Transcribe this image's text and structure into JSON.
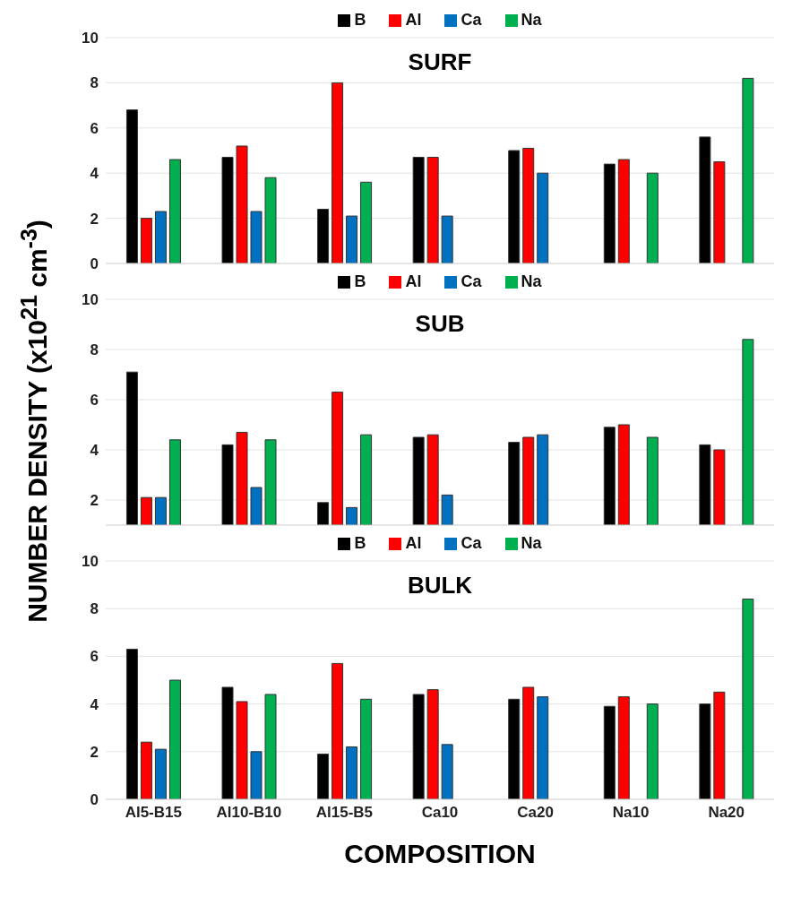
{
  "chart_data": [
    {
      "type": "bar",
      "title": "SURF",
      "categories": [
        null,
        null,
        null,
        null,
        null,
        null,
        null
      ],
      "series": [
        {
          "name": "B",
          "color": "#000000",
          "values": [
            6.8,
            4.7,
            2.4,
            4.7,
            5.0,
            4.4,
            5.6
          ]
        },
        {
          "name": "Al",
          "color": "#ff0000",
          "values": [
            2.0,
            5.2,
            8.0,
            4.7,
            5.1,
            4.6,
            4.5
          ]
        },
        {
          "name": "Ca",
          "color": "#0070c0",
          "values": [
            2.3,
            2.3,
            2.1,
            2.1,
            4.0,
            null,
            null
          ]
        },
        {
          "name": "Na",
          "color": "#00b050",
          "values": [
            4.6,
            3.8,
            3.6,
            null,
            null,
            4.0,
            8.2
          ]
        }
      ],
      "ylim": [
        0,
        10
      ],
      "yticks": [
        0,
        2,
        4,
        6,
        8,
        10
      ],
      "grid": "y",
      "legend": "top",
      "tick_labels": "y"
    },
    {
      "type": "bar",
      "title": "SUB",
      "ylabel": "NUMBER DENSITY (x10$^{21}$ cm$^{-3}$)",
      "categories": [
        null,
        null,
        null,
        null,
        null,
        null,
        null
      ],
      "series": [
        {
          "name": "B",
          "color": "#000000",
          "values": [
            7.1,
            4.2,
            1.9,
            4.5,
            4.3,
            4.9,
            4.2
          ]
        },
        {
          "name": "Al",
          "color": "#ff0000",
          "values": [
            2.1,
            4.7,
            6.3,
            4.6,
            4.5,
            5.0,
            4.0
          ]
        },
        {
          "name": "Ca",
          "color": "#0070c0",
          "values": [
            2.1,
            2.5,
            1.7,
            2.2,
            4.6,
            null,
            null
          ]
        },
        {
          "name": "Na",
          "color": "#00b050",
          "values": [
            4.4,
            4.4,
            4.6,
            null,
            null,
            4.5,
            8.4
          ]
        }
      ],
      "ylim": [
        1,
        10
      ],
      "yticks": [
        2,
        4,
        6,
        8,
        10
      ],
      "grid": "y",
      "legend": "top",
      "tick_labels": "y"
    },
    {
      "type": "bar",
      "title": "BULK",
      "xlabel": "COMPOSITION",
      "categories": [
        "Al5-B15",
        "Al10-B10",
        "Al15-B5",
        "Ca10",
        "Ca20",
        "Na10",
        "Na20"
      ],
      "series": [
        {
          "name": "B",
          "color": "#000000",
          "values": [
            6.3,
            4.7,
            1.9,
            4.4,
            4.2,
            3.9,
            4.0
          ]
        },
        {
          "name": "Al",
          "color": "#ff0000",
          "values": [
            2.4,
            4.1,
            5.7,
            4.6,
            4.7,
            4.3,
            4.5
          ]
        },
        {
          "name": "Ca",
          "color": "#0070c0",
          "values": [
            2.1,
            2.0,
            2.2,
            2.3,
            4.3,
            null,
            null
          ]
        },
        {
          "name": "Na",
          "color": "#00b050",
          "values": [
            5.0,
            4.4,
            4.2,
            null,
            null,
            4.0,
            8.4
          ]
        }
      ],
      "ylim": [
        0,
        10
      ],
      "yticks": [
        0,
        2,
        4,
        6,
        8,
        10
      ],
      "grid": "y",
      "legend": "top"
    }
  ]
}
